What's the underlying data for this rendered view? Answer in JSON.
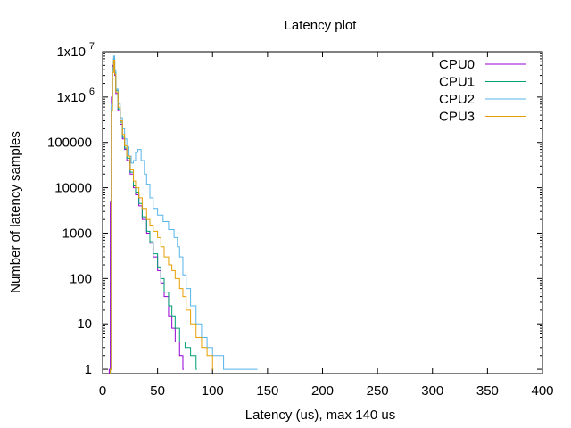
{
  "chart_data": {
    "type": "line",
    "title": "Latency plot",
    "xlabel": "Latency (us), max 140 us",
    "ylabel": "Number of latency samples",
    "xlim": [
      0,
      400
    ],
    "ylim": [
      0.8,
      10000000
    ],
    "yscale": "log",
    "x_ticks": [
      0,
      50,
      100,
      150,
      200,
      250,
      300,
      350,
      400
    ],
    "x_tick_labels": [
      "0",
      "50",
      "100",
      "150",
      "200",
      "250",
      "300",
      "350",
      "400"
    ],
    "y_ticks": [
      {
        "value": 1,
        "base": "1",
        "exp": ""
      },
      {
        "value": 10,
        "base": "10",
        "exp": ""
      },
      {
        "value": 100,
        "base": "100",
        "exp": ""
      },
      {
        "value": 1000,
        "base": "1000",
        "exp": ""
      },
      {
        "value": 10000,
        "base": "10000",
        "exp": ""
      },
      {
        "value": 100000,
        "base": "100000",
        "exp": ""
      },
      {
        "value": 1000000,
        "base": "1x10",
        "exp": "6"
      },
      {
        "value": 10000000,
        "base": "1x10",
        "exp": "7"
      }
    ],
    "grid": false,
    "legend_position": "top-right",
    "series": [
      {
        "name": "CPU0",
        "color": "#9400d3",
        "points": [
          [
            6,
            1
          ],
          [
            7,
            5000
          ],
          [
            8,
            1000000
          ],
          [
            9,
            5000000
          ],
          [
            10,
            6000000
          ],
          [
            11,
            3000000
          ],
          [
            12,
            1200000
          ],
          [
            14,
            500000
          ],
          [
            16,
            250000
          ],
          [
            18,
            120000
          ],
          [
            20,
            70000
          ],
          [
            22,
            40000
          ],
          [
            25,
            20000
          ],
          [
            28,
            10000
          ],
          [
            30,
            7000
          ],
          [
            33,
            4000
          ],
          [
            36,
            2000
          ],
          [
            40,
            1000
          ],
          [
            43,
            600
          ],
          [
            46,
            300
          ],
          [
            50,
            150
          ],
          [
            53,
            80
          ],
          [
            56,
            40
          ],
          [
            60,
            15
          ],
          [
            63,
            8
          ],
          [
            66,
            4
          ],
          [
            70,
            2
          ],
          [
            73,
            1
          ]
        ]
      },
      {
        "name": "CPU1",
        "color": "#009e73",
        "points": [
          [
            7,
            1
          ],
          [
            8,
            600000
          ],
          [
            9,
            4000000
          ],
          [
            10,
            7000000
          ],
          [
            11,
            3500000
          ],
          [
            12,
            1400000
          ],
          [
            14,
            550000
          ],
          [
            16,
            280000
          ],
          [
            18,
            130000
          ],
          [
            20,
            75000
          ],
          [
            22,
            45000
          ],
          [
            25,
            22000
          ],
          [
            28,
            11000
          ],
          [
            30,
            8000
          ],
          [
            33,
            4500
          ],
          [
            36,
            2300
          ],
          [
            40,
            1100
          ],
          [
            43,
            650
          ],
          [
            46,
            350
          ],
          [
            50,
            180
          ],
          [
            53,
            100
          ],
          [
            56,
            50
          ],
          [
            60,
            25
          ],
          [
            63,
            15
          ],
          [
            66,
            8
          ],
          [
            70,
            4
          ],
          [
            75,
            3
          ],
          [
            80,
            2
          ],
          [
            85,
            1
          ]
        ]
      },
      {
        "name": "CPU2",
        "color": "#56b4e9",
        "points": [
          [
            7,
            1
          ],
          [
            8,
            700000
          ],
          [
            9,
            4500000
          ],
          [
            10,
            8000000
          ],
          [
            11,
            4000000
          ],
          [
            12,
            1500000
          ],
          [
            14,
            700000
          ],
          [
            16,
            350000
          ],
          [
            18,
            200000
          ],
          [
            20,
            120000
          ],
          [
            22,
            80000
          ],
          [
            24,
            50000
          ],
          [
            26,
            35000
          ],
          [
            28,
            40000
          ],
          [
            30,
            60000
          ],
          [
            32,
            70000
          ],
          [
            35,
            40000
          ],
          [
            38,
            20000
          ],
          [
            40,
            12000
          ],
          [
            43,
            6000
          ],
          [
            46,
            3500
          ],
          [
            50,
            2500
          ],
          [
            55,
            1800
          ],
          [
            60,
            1200
          ],
          [
            65,
            800
          ],
          [
            68,
            500
          ],
          [
            70,
            300
          ],
          [
            73,
            120
          ],
          [
            76,
            60
          ],
          [
            80,
            25
          ],
          [
            85,
            10
          ],
          [
            90,
            5
          ],
          [
            95,
            3
          ],
          [
            100,
            2
          ],
          [
            110,
            1
          ],
          [
            120,
            1
          ],
          [
            130,
            1
          ],
          [
            140,
            1
          ]
        ]
      },
      {
        "name": "CPU3",
        "color": "#e69f00",
        "points": [
          [
            7,
            1
          ],
          [
            8,
            500000
          ],
          [
            9,
            3500000
          ],
          [
            10,
            6500000
          ],
          [
            11,
            3200000
          ],
          [
            12,
            1300000
          ],
          [
            14,
            600000
          ],
          [
            16,
            300000
          ],
          [
            18,
            150000
          ],
          [
            20,
            85000
          ],
          [
            22,
            50000
          ],
          [
            25,
            25000
          ],
          [
            28,
            14000
          ],
          [
            30,
            10000
          ],
          [
            33,
            6000
          ],
          [
            36,
            3500
          ],
          [
            40,
            2000
          ],
          [
            43,
            1500
          ],
          [
            46,
            1100
          ],
          [
            50,
            800
          ],
          [
            53,
            500
          ],
          [
            56,
            300
          ],
          [
            60,
            200
          ],
          [
            63,
            150
          ],
          [
            66,
            100
          ],
          [
            70,
            60
          ],
          [
            73,
            40
          ],
          [
            76,
            20
          ],
          [
            80,
            10
          ],
          [
            85,
            5
          ],
          [
            90,
            3
          ],
          [
            95,
            2
          ],
          [
            100,
            1
          ]
        ]
      }
    ]
  }
}
